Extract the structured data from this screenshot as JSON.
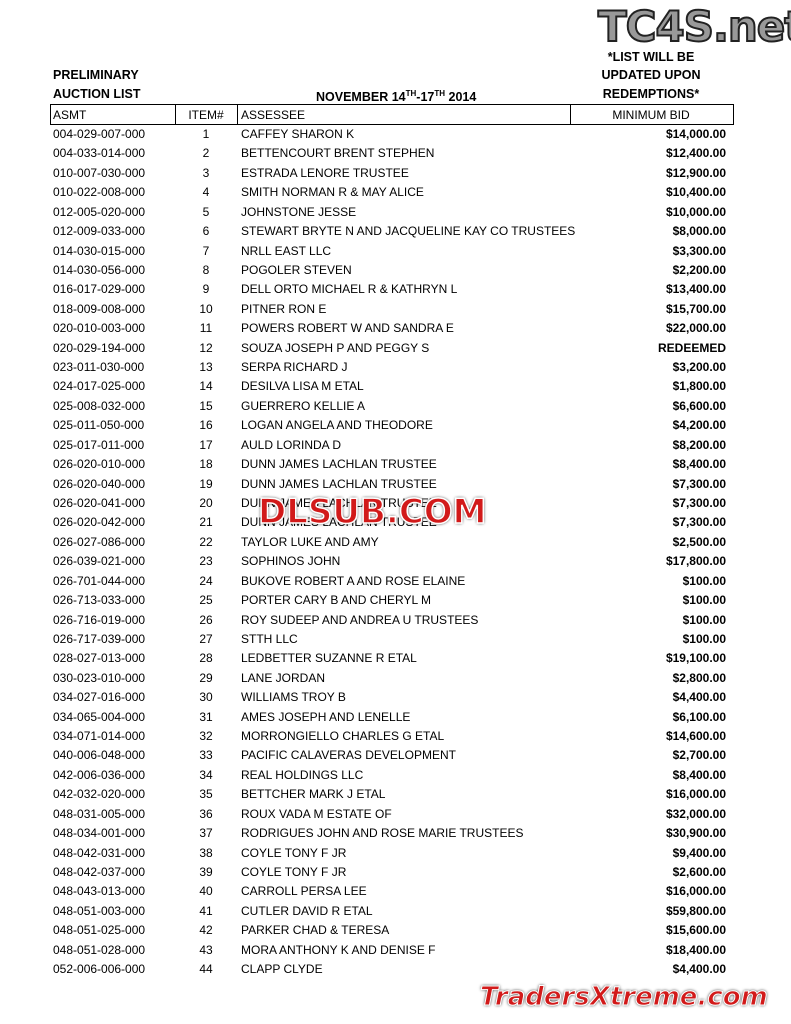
{
  "header": {
    "left": [
      "PRELIMINARY",
      "AUCTION LIST"
    ],
    "date": {
      "start": "NOVEMBER 14",
      "sup1": "TH",
      "mid": "-17",
      "sup2": "TH",
      "year": "2014"
    },
    "right": [
      "*LIST WILL BE",
      "UPDATED UPON",
      "REDEMPTIONS*"
    ]
  },
  "watermarks": {
    "top": "TC4S.net",
    "middle": "DLSUB.COM",
    "bottom": "TradersXtreme.com"
  },
  "table": {
    "columns": [
      "ASMT",
      "ITEM#",
      "ASSESSEE",
      "MINIMUM BID"
    ],
    "rows": [
      [
        "004-029-007-000",
        "1",
        "CAFFEY SHARON K",
        "$14,000.00"
      ],
      [
        "004-033-014-000",
        "2",
        "BETTENCOURT BRENT STEPHEN",
        "$12,400.00"
      ],
      [
        "010-007-030-000",
        "3",
        "ESTRADA LENORE TRUSTEE",
        "$12,900.00"
      ],
      [
        "010-022-008-000",
        "4",
        "SMITH NORMAN R & MAY ALICE",
        "$10,400.00"
      ],
      [
        "012-005-020-000",
        "5",
        "JOHNSTONE JESSE",
        "$10,000.00"
      ],
      [
        "012-009-033-000",
        "6",
        "STEWART BRYTE N AND JACQUELINE KAY CO TRUSTEES",
        "$8,000.00"
      ],
      [
        "014-030-015-000",
        "7",
        "NRLL EAST LLC",
        "$3,300.00"
      ],
      [
        "014-030-056-000",
        "8",
        "POGOLER STEVEN",
        "$2,200.00"
      ],
      [
        "016-017-029-000",
        "9",
        "DELL ORTO MICHAEL R & KATHRYN L",
        "$13,400.00"
      ],
      [
        "018-009-008-000",
        "10",
        "PITNER RON E",
        "$15,700.00"
      ],
      [
        "020-010-003-000",
        "11",
        "POWERS ROBERT W AND SANDRA E",
        "$22,000.00"
      ],
      [
        "020-029-194-000",
        "12",
        "SOUZA JOSEPH P AND PEGGY S",
        "REDEEMED"
      ],
      [
        "023-011-030-000",
        "13",
        "SERPA RICHARD J",
        "$3,200.00"
      ],
      [
        "024-017-025-000",
        "14",
        "DESILVA LISA M ETAL",
        "$1,800.00"
      ],
      [
        "025-008-032-000",
        "15",
        "GUERRERO KELLIE A",
        "$6,600.00"
      ],
      [
        "025-011-050-000",
        "16",
        "LOGAN ANGELA AND THEODORE",
        "$4,200.00"
      ],
      [
        "025-017-011-000",
        "17",
        "AULD LORINDA D",
        "$8,200.00"
      ],
      [
        "026-020-010-000",
        "18",
        "DUNN JAMES LACHLAN TRUSTEE",
        "$8,400.00"
      ],
      [
        "026-020-040-000",
        "19",
        "DUNN JAMES LACHLAN TRUSTEE",
        "$7,300.00"
      ],
      [
        "026-020-041-000",
        "20",
        "DUNN JAMES LACHLAN TRUSTEE",
        "$7,300.00"
      ],
      [
        "026-020-042-000",
        "21",
        "DUNN JAMES LACHLAN TRUSTEE",
        "$7,300.00"
      ],
      [
        "026-027-086-000",
        "22",
        "TAYLOR LUKE AND AMY",
        "$2,500.00"
      ],
      [
        "026-039-021-000",
        "23",
        "SOPHINOS JOHN",
        "$17,800.00"
      ],
      [
        "026-701-044-000",
        "24",
        "BUKOVE ROBERT A AND ROSE ELAINE",
        "$100.00"
      ],
      [
        "026-713-033-000",
        "25",
        "PORTER CARY B AND CHERYL M",
        "$100.00"
      ],
      [
        "026-716-019-000",
        "26",
        "ROY SUDEEP AND ANDREA U TRUSTEES",
        "$100.00"
      ],
      [
        "026-717-039-000",
        "27",
        "STTH LLC",
        "$100.00"
      ],
      [
        "028-027-013-000",
        "28",
        "LEDBETTER SUZANNE R ETAL",
        "$19,100.00"
      ],
      [
        "030-023-010-000",
        "29",
        "LANE JORDAN",
        "$2,800.00"
      ],
      [
        "034-027-016-000",
        "30",
        "WILLIAMS TROY B",
        "$4,400.00"
      ],
      [
        "034-065-004-000",
        "31",
        "AMES JOSEPH AND LENELLE",
        "$6,100.00"
      ],
      [
        "034-071-014-000",
        "32",
        "MORRONGIELLO CHARLES G ETAL",
        "$14,600.00"
      ],
      [
        "040-006-048-000",
        "33",
        "PACIFIC CALAVERAS DEVELOPMENT",
        "$2,700.00"
      ],
      [
        "042-006-036-000",
        "34",
        "REAL HOLDINGS LLC",
        "$8,400.00"
      ],
      [
        "042-032-020-000",
        "35",
        "BETTCHER MARK J ETAL",
        "$16,000.00"
      ],
      [
        "048-031-005-000",
        "36",
        "ROUX VADA M ESTATE OF",
        "$32,000.00"
      ],
      [
        "048-034-001-000",
        "37",
        "RODRIGUES JOHN AND ROSE MARIE TRUSTEES",
        "$30,900.00"
      ],
      [
        "048-042-031-000",
        "38",
        "COYLE TONY F JR",
        "$9,400.00"
      ],
      [
        "048-042-037-000",
        "39",
        "COYLE TONY F JR",
        "$2,600.00"
      ],
      [
        "048-043-013-000",
        "40",
        "CARROLL PERSA LEE",
        "$16,000.00"
      ],
      [
        "048-051-003-000",
        "41",
        "CUTLER DAVID R ETAL",
        "$59,800.00"
      ],
      [
        "048-051-025-000",
        "42",
        "PARKER CHAD & TERESA",
        "$15,600.00"
      ],
      [
        "048-051-028-000",
        "43",
        "MORA ANTHONY K AND DENISE F",
        "$18,400.00"
      ],
      [
        "052-006-006-000",
        "44",
        "CLAPP CLYDE",
        "$4,400.00"
      ]
    ]
  }
}
